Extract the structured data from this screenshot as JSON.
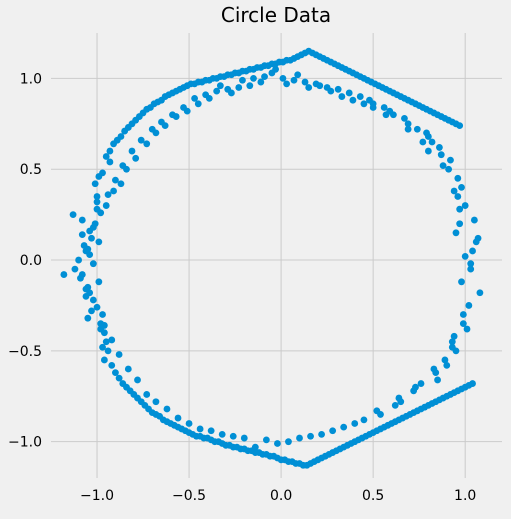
{
  "chart_data": {
    "type": "scatter",
    "title": "Circle Data",
    "xlabel": "",
    "ylabel": "",
    "xlim": [
      -1.25,
      1.2
    ],
    "ylim": [
      -1.2,
      1.25
    ],
    "x_ticks": [
      -1.0,
      -0.5,
      0.0,
      0.5,
      1.0
    ],
    "x_tick_labels": [
      "−1.0",
      "−0.5",
      "0.0",
      "0.5",
      "1.0"
    ],
    "y_ticks": [
      -1.0,
      -0.5,
      0.0,
      0.5,
      1.0
    ],
    "y_tick_labels": [
      "−1.0",
      "−0.5",
      "0.0",
      "0.5",
      "1.0"
    ],
    "grid": true,
    "marker_color": "#008fd5",
    "background_color": "#f0f0f0",
    "grid_color": "#cbcbcb",
    "series": [
      {
        "x": [
          1.0,
          1.03,
          1.06,
          0.98,
          0.95,
          1.05,
          1.08,
          0.97,
          1.02,
          1.04,
          0.99,
          1.07,
          0.96,
          1.03,
          1.01,
          0.98,
          0.94,
          1.0,
          0.96,
          0.93,
          0.99,
          0.91,
          0.95,
          0.97,
          0.92,
          0.89,
          0.94,
          0.87,
          0.9,
          0.93,
          0.86,
          0.84,
          0.88,
          0.82,
          0.85,
          0.8,
          0.83,
          0.79,
          0.76,
          0.8,
          0.74,
          0.72,
          0.77,
          0.69,
          0.73,
          0.67,
          0.64,
          0.69,
          0.61,
          0.65,
          0.59,
          0.62,
          0.56,
          0.52,
          0.57,
          0.5,
          0.54,
          0.48,
          0.45,
          0.5,
          0.43,
          0.4,
          0.45,
          0.37,
          0.34,
          0.39,
          0.31,
          0.28,
          0.33,
          0.25,
          0.22,
          0.27,
          0.19,
          0.16,
          0.21,
          0.13,
          0.1,
          0.15,
          0.07,
          0.04,
          0.09,
          0.01,
          -0.02,
          0.03,
          -0.05,
          -0.08,
          -0.03,
          -0.11,
          -0.14,
          -0.09,
          -0.17,
          -0.2,
          -0.15,
          -0.23,
          -0.26,
          -0.21,
          -0.29,
          -0.32,
          -0.27,
          -0.35,
          -0.38,
          -0.33,
          -0.41,
          -0.44,
          -0.39,
          -0.47,
          -0.5,
          -0.45,
          -0.53,
          -0.56,
          -0.51,
          -0.59,
          -0.62,
          -0.57,
          -0.65,
          -0.68,
          -0.63,
          -0.7,
          -0.73,
          -0.68,
          -0.76,
          -0.78,
          -0.73,
          -0.81,
          -0.83,
          -0.79,
          -0.86,
          -0.88,
          -0.84,
          -0.9,
          -0.92,
          -0.87,
          -0.94,
          -0.96,
          -0.91,
          -0.98,
          -1.0,
          -0.95,
          -1.02,
          -1.04,
          -0.99,
          -1.06,
          -1.08,
          -1.01,
          -1.05,
          -1.1,
          -0.97,
          -1.03,
          -1.12,
          -1.0,
          -1.02,
          -1.07,
          -0.96,
          -1.04,
          -1.09,
          -0.98,
          -1.13,
          -1.06,
          -1.0,
          -0.95,
          -1.03,
          -1.08,
          -0.99,
          -1.18,
          -1.05,
          -1.01,
          -0.97,
          -1.06,
          -1.04,
          -0.99,
          -0.94,
          -1.02,
          -1.08,
          -0.96,
          -1.0,
          -0.93,
          -0.98,
          -1.05,
          -0.92,
          -0.97,
          -0.9,
          -0.95,
          -0.88,
          -0.93,
          -0.86,
          -0.91,
          -0.84,
          -0.89,
          -0.82,
          -0.87,
          -0.8,
          -0.85,
          -0.78,
          -0.83,
          -0.76,
          -0.81,
          -0.74,
          -0.79,
          -0.72,
          -0.77,
          -0.7,
          -0.75,
          -0.68,
          -0.73,
          -0.66,
          -0.71,
          -0.64,
          -0.69,
          -0.62,
          -0.67,
          -0.6,
          -0.65,
          -0.58,
          -0.63,
          -0.56,
          -0.61,
          -0.54,
          -0.59,
          -0.52,
          -0.57,
          -0.5,
          -0.55,
          -0.48,
          -0.53,
          -0.46,
          -0.51,
          -0.44,
          -0.49,
          -0.42,
          -0.47,
          -0.4,
          -0.45,
          -0.38,
          -0.43,
          -0.36,
          -0.41,
          -0.34,
          -0.39,
          -0.32,
          -0.37,
          -0.3,
          -0.35,
          -0.28,
          -0.33,
          -0.26,
          -0.31,
          -0.24,
          -0.29,
          -0.22,
          -0.27,
          -0.2,
          -0.25,
          -0.18,
          -0.23,
          -0.16,
          -0.21,
          -0.14,
          -0.19,
          -0.12,
          -0.17,
          -0.1,
          -0.15,
          -0.08,
          -0.13,
          -0.06,
          -0.11,
          -0.04,
          -0.09,
          -0.02,
          -0.07,
          0.0,
          -0.05,
          0.02,
          -0.03,
          0.04,
          -0.01,
          0.06,
          0.01,
          0.08,
          0.03,
          0.1,
          0.05,
          0.12,
          0.07,
          0.14,
          0.09,
          0.16,
          0.11,
          0.18,
          0.13,
          0.2,
          0.15,
          0.22,
          0.17,
          0.24,
          0.19,
          0.26,
          0.21,
          0.28,
          0.23,
          0.3,
          0.25,
          0.32,
          0.27,
          0.34,
          0.29,
          0.36,
          0.31,
          0.38,
          0.33,
          0.4,
          0.35,
          0.42,
          0.37,
          0.44,
          0.39,
          0.46,
          0.41,
          0.48,
          0.43,
          0.5,
          0.45,
          0.52,
          0.47,
          0.54,
          0.49,
          0.56,
          0.51,
          0.58,
          0.53,
          0.6,
          0.55,
          0.62,
          0.57,
          0.64,
          0.59,
          0.66,
          0.61,
          0.68,
          0.63,
          0.7,
          0.65,
          0.72,
          0.67,
          0.74,
          0.69,
          0.76,
          0.71,
          0.78,
          0.73,
          0.8,
          0.75,
          0.82,
          0.77,
          0.84,
          0.79,
          0.86,
          0.81,
          0.88,
          0.83,
          0.9,
          0.85,
          0.92,
          0.87,
          0.94,
          0.89,
          0.96,
          0.91,
          0.98,
          0.93,
          1.0,
          0.95,
          1.02,
          0.97,
          1.04
        ],
        "y": [
          0.02,
          -0.05,
          0.1,
          -0.12,
          0.15,
          0.22,
          -0.18,
          0.28,
          -0.25,
          0.05,
          -0.3,
          0.12,
          0.35,
          -0.02,
          -0.38,
          0.4,
          -0.42,
          0.3,
          0.45,
          -0.48,
          -0.35,
          0.5,
          -0.5,
          0.2,
          0.55,
          -0.55,
          0.38,
          0.58,
          -0.58,
          -0.45,
          0.62,
          -0.62,
          0.52,
          0.65,
          -0.66,
          0.68,
          -0.6,
          0.7,
          -0.68,
          0.6,
          0.72,
          -0.72,
          0.65,
          0.75,
          -0.7,
          0.78,
          -0.76,
          0.72,
          0.8,
          -0.78,
          0.82,
          -0.8,
          0.84,
          -0.83,
          0.8,
          0.86,
          -0.85,
          0.88,
          -0.88,
          0.84,
          0.9,
          -0.9,
          0.86,
          0.92,
          -0.92,
          0.88,
          0.94,
          -0.94,
          0.9,
          0.95,
          -0.96,
          0.93,
          0.97,
          -0.97,
          0.96,
          0.98,
          -0.98,
          0.95,
          0.99,
          -1.0,
          1.02,
          1.0,
          -1.01,
          0.97,
          1.03,
          -0.99,
          1.05,
          0.98,
          -1.03,
          1.01,
          0.96,
          -0.98,
          1.0,
          0.95,
          -0.97,
          0.99,
          0.94,
          -0.96,
          0.92,
          0.93,
          -0.94,
          0.96,
          0.91,
          -0.93,
          0.89,
          0.89,
          -0.9,
          0.86,
          0.84,
          -0.87,
          0.82,
          0.8,
          -0.82,
          0.79,
          0.76,
          -0.78,
          0.74,
          0.72,
          -0.74,
          0.7,
          0.66,
          -0.66,
          0.64,
          0.6,
          -0.6,
          0.56,
          0.52,
          -0.52,
          0.5,
          0.44,
          -0.44,
          0.42,
          0.36,
          -0.36,
          0.38,
          0.26,
          -0.26,
          0.3,
          0.18,
          -0.18,
          0.1,
          0.05,
          -0.08,
          0.2,
          -0.15,
          0.0,
          -0.3,
          0.12,
          -0.05,
          0.28,
          -0.22,
          0.08,
          -0.4,
          0.16,
          -0.1,
          -0.35,
          0.25,
          -0.2,
          0.35,
          -0.45,
          -0.28,
          0.22,
          -0.12,
          -0.08,
          -0.32,
          0.42,
          -0.48,
          -0.16,
          0.03,
          0.46,
          -0.5,
          -0.02,
          0.14,
          -0.55,
          0.32,
          0.54,
          -0.38,
          0.06,
          -0.58,
          0.48,
          -0.62,
          0.57,
          -0.65,
          0.6,
          -0.68,
          0.64,
          -0.7,
          0.66,
          -0.72,
          0.68,
          -0.74,
          0.71,
          -0.76,
          0.73,
          -0.78,
          0.75,
          -0.8,
          0.77,
          -0.82,
          0.79,
          -0.84,
          0.81,
          -0.85,
          0.83,
          -0.86,
          0.84,
          -0.88,
          0.86,
          -0.89,
          0.87,
          -0.9,
          0.88,
          -0.91,
          0.9,
          -0.92,
          0.91,
          -0.93,
          0.92,
          -0.94,
          0.93,
          -0.95,
          0.94,
          -0.96,
          0.95,
          -0.97,
          0.96,
          -0.97,
          0.97,
          -0.98,
          0.97,
          -0.98,
          0.98,
          -0.99,
          0.98,
          -1.0,
          0.99,
          -1.0,
          0.99,
          -1.01,
          1.0,
          -1.02,
          1.0,
          -1.02,
          1.01,
          -1.03,
          1.01,
          -1.03,
          1.02,
          -1.04,
          1.02,
          -1.04,
          1.03,
          -1.05,
          1.03,
          -1.05,
          1.04,
          -1.06,
          1.04,
          -1.06,
          1.05,
          -1.07,
          1.05,
          -1.07,
          1.06,
          -1.08,
          1.06,
          -1.08,
          1.07,
          -1.09,
          1.07,
          -1.1,
          1.08,
          -1.1,
          1.08,
          -1.11,
          1.09,
          -1.11,
          1.09,
          -1.12,
          1.1,
          -1.12,
          1.1,
          -1.13,
          1.11,
          -1.13,
          1.12,
          -1.12,
          1.13,
          -1.11,
          1.14,
          -1.1,
          1.15,
          -1.09,
          1.14,
          -1.08,
          1.13,
          -1.07,
          1.12,
          -1.06,
          1.11,
          -1.05,
          1.1,
          -1.04,
          1.09,
          -1.03,
          1.08,
          -1.02,
          1.07,
          -1.01,
          1.06,
          -1.0,
          1.05,
          -0.99,
          1.04,
          -0.98,
          1.03,
          -0.97,
          1.02,
          -0.96,
          1.01,
          -0.95,
          1.0,
          -0.94,
          0.99,
          -0.93,
          0.98,
          -0.92,
          0.97,
          -0.91,
          0.96,
          -0.9,
          0.95,
          -0.89,
          0.94,
          -0.88,
          0.93,
          -0.87,
          0.92,
          -0.86,
          0.91,
          -0.85,
          0.9,
          -0.84,
          0.89,
          -0.83,
          0.88,
          -0.82,
          0.87,
          -0.81,
          0.86,
          -0.8,
          0.85,
          -0.79,
          0.84,
          -0.78,
          0.83,
          -0.77,
          0.82,
          -0.76,
          0.81,
          -0.75,
          0.8,
          -0.74,
          0.79,
          -0.73,
          0.78,
          -0.72,
          0.77,
          -0.71,
          0.76,
          -0.7,
          0.75,
          -0.69,
          0.74,
          -0.68
        ]
      }
    ]
  }
}
